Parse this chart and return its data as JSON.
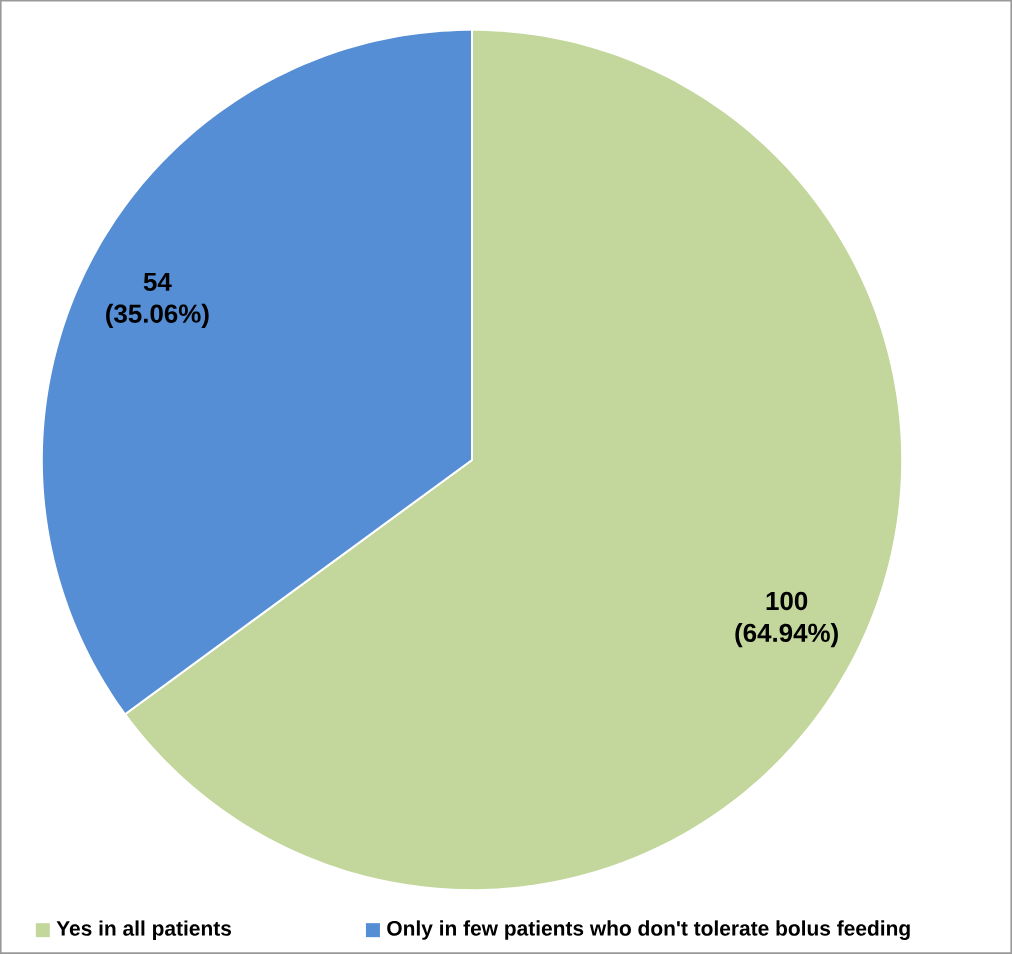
{
  "chart_data": {
    "type": "pie",
    "categories": [
      "Yes in all patients",
      "Only in few patients who don't tolerate bolus feeding"
    ],
    "values": [
      100,
      54
    ],
    "colors": [
      "#c3d69b",
      "#558ed5"
    ],
    "value_labels": [
      "100 (64.94%)",
      "54 (35.06%)"
    ],
    "legend": "bottom"
  }
}
